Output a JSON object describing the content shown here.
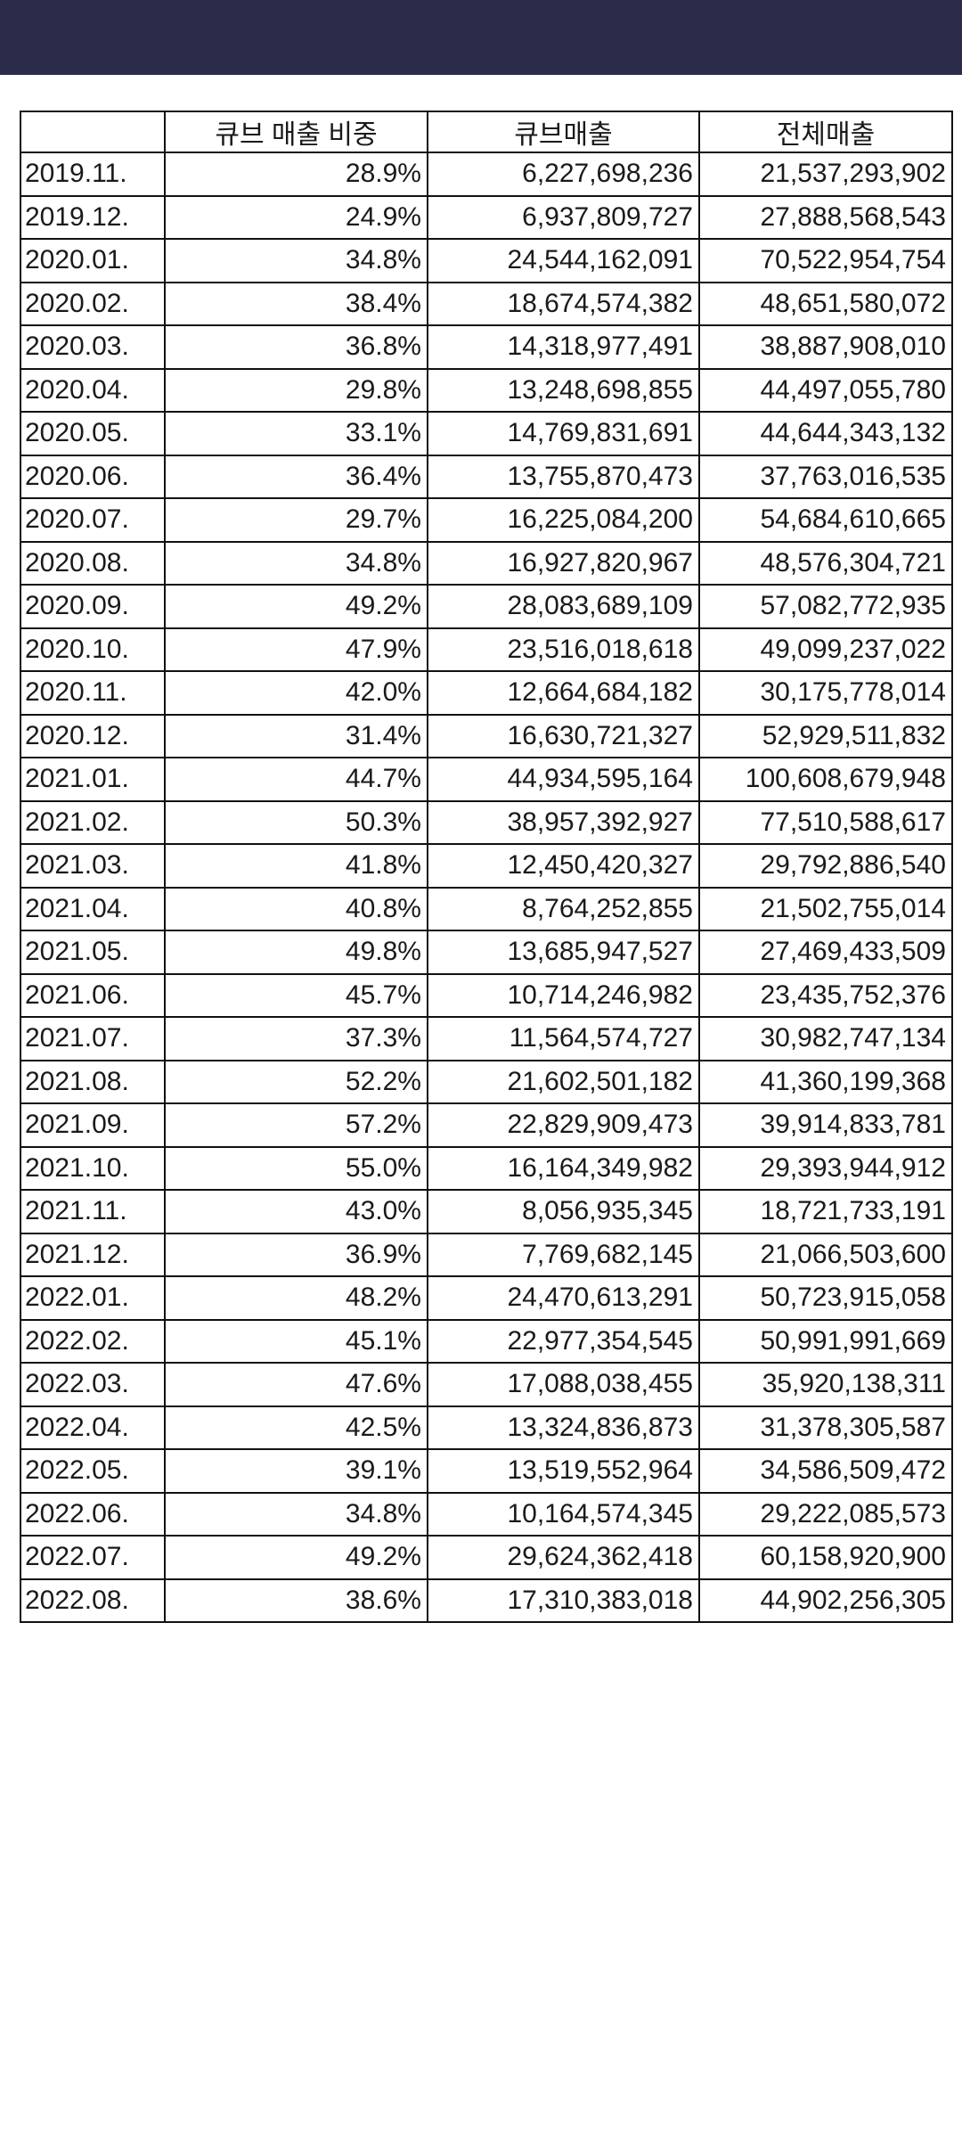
{
  "table": {
    "headers": [
      "",
      "큐브 매출 비중",
      "큐브매출",
      "전체매출"
    ],
    "rows": [
      [
        "2019.11.",
        "28.9%",
        "6,227,698,236",
        "21,537,293,902"
      ],
      [
        "2019.12.",
        "24.9%",
        "6,937,809,727",
        "27,888,568,543"
      ],
      [
        "2020.01.",
        "34.8%",
        "24,544,162,091",
        "70,522,954,754"
      ],
      [
        "2020.02.",
        "38.4%",
        "18,674,574,382",
        "48,651,580,072"
      ],
      [
        "2020.03.",
        "36.8%",
        "14,318,977,491",
        "38,887,908,010"
      ],
      [
        "2020.04.",
        "29.8%",
        "13,248,698,855",
        "44,497,055,780"
      ],
      [
        "2020.05.",
        "33.1%",
        "14,769,831,691",
        "44,644,343,132"
      ],
      [
        "2020.06.",
        "36.4%",
        "13,755,870,473",
        "37,763,016,535"
      ],
      [
        "2020.07.",
        "29.7%",
        "16,225,084,200",
        "54,684,610,665"
      ],
      [
        "2020.08.",
        "34.8%",
        "16,927,820,967",
        "48,576,304,721"
      ],
      [
        "2020.09.",
        "49.2%",
        "28,083,689,109",
        "57,082,772,935"
      ],
      [
        "2020.10.",
        "47.9%",
        "23,516,018,618",
        "49,099,237,022"
      ],
      [
        "2020.11.",
        "42.0%",
        "12,664,684,182",
        "30,175,778,014"
      ],
      [
        "2020.12.",
        "31.4%",
        "16,630,721,327",
        "52,929,511,832"
      ],
      [
        "2021.01.",
        "44.7%",
        "44,934,595,164",
        "100,608,679,948"
      ],
      [
        "2021.02.",
        "50.3%",
        "38,957,392,927",
        "77,510,588,617"
      ],
      [
        "2021.03.",
        "41.8%",
        "12,450,420,327",
        "29,792,886,540"
      ],
      [
        "2021.04.",
        "40.8%",
        "8,764,252,855",
        "21,502,755,014"
      ],
      [
        "2021.05.",
        "49.8%",
        "13,685,947,527",
        "27,469,433,509"
      ],
      [
        "2021.06.",
        "45.7%",
        "10,714,246,982",
        "23,435,752,376"
      ],
      [
        "2021.07.",
        "37.3%",
        "11,564,574,727",
        "30,982,747,134"
      ],
      [
        "2021.08.",
        "52.2%",
        "21,602,501,182",
        "41,360,199,368"
      ],
      [
        "2021.09.",
        "57.2%",
        "22,829,909,473",
        "39,914,833,781"
      ],
      [
        "2021.10.",
        "55.0%",
        "16,164,349,982",
        "29,393,944,912"
      ],
      [
        "2021.11.",
        "43.0%",
        "8,056,935,345",
        "18,721,733,191"
      ],
      [
        "2021.12.",
        "36.9%",
        "7,769,682,145",
        "21,066,503,600"
      ],
      [
        "2022.01.",
        "48.2%",
        "24,470,613,291",
        "50,723,915,058"
      ],
      [
        "2022.02.",
        "45.1%",
        "22,977,354,545",
        "50,991,991,669"
      ],
      [
        "2022.03.",
        "47.6%",
        "17,088,038,455",
        "35,920,138,311"
      ],
      [
        "2022.04.",
        "42.5%",
        "13,324,836,873",
        "31,378,305,587"
      ],
      [
        "2022.05.",
        "39.1%",
        "13,519,552,964",
        "34,586,509,472"
      ],
      [
        "2022.06.",
        "34.8%",
        "10,164,574,345",
        "29,222,085,573"
      ],
      [
        "2022.07.",
        "49.2%",
        "29,624,362,418",
        "60,158,920,900"
      ],
      [
        "2022.08.",
        "38.6%",
        "17,310,383,018",
        "44,902,256,305"
      ]
    ]
  }
}
